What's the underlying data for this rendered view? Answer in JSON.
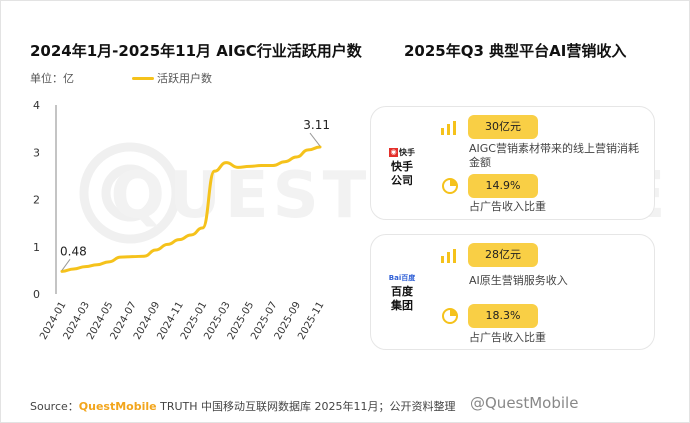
{
  "left_title": "2024年1月-2025年11月 AIGC行业活跃用户数",
  "right_title": "2025年Q3 典型平台AI营销收入",
  "unit_label": "单位：亿",
  "legend_label": "活跃用户数",
  "watermark": "QUESTMOBILE",
  "chart_data": {
    "type": "line",
    "title": "2024年1月-2025年11月 AIGC行业活跃用户数",
    "ylabel": "单位：亿",
    "ylim": [
      0,
      4
    ],
    "y_ticks": [
      "0",
      "1",
      "2",
      "3",
      "4"
    ],
    "grid": false,
    "legend_position": "top",
    "x": [
      "2024-01",
      "2024-02",
      "2024-03",
      "2024-04",
      "2024-05",
      "2024-06",
      "2024-07",
      "2024-08",
      "2024-09",
      "2024-10",
      "2024-11",
      "2024-12",
      "2025-01",
      "2025-02",
      "2025-03",
      "2025-04",
      "2025-05",
      "2025-06",
      "2025-07",
      "2025-08",
      "2025-09",
      "2025-10",
      "2025-11"
    ],
    "x_tick_labels": [
      "2024-01",
      "2024-03",
      "2024-05",
      "2024-07",
      "2024-09",
      "2024-11",
      "2025-01",
      "2025-03",
      "2025-05",
      "2025-07",
      "2025-09",
      "2025-11"
    ],
    "series": [
      {
        "name": "活跃用户数",
        "color": "#F5C21B",
        "values": [
          0.48,
          0.53,
          0.58,
          0.62,
          0.68,
          0.78,
          0.79,
          0.8,
          0.93,
          1.05,
          1.15,
          1.25,
          1.4,
          2.6,
          2.78,
          2.68,
          2.7,
          2.72,
          2.72,
          2.8,
          2.9,
          3.05,
          3.11
        ]
      }
    ],
    "annotations": [
      {
        "index": 0,
        "text": "0.48"
      },
      {
        "index": 22,
        "text": "3.11"
      }
    ]
  },
  "platforms": [
    {
      "name_line1": "快手",
      "name_line2": "公司",
      "logo_text": "快手",
      "amount": "30亿元",
      "amount_desc": "AIGC营销素材带来的线上营销消耗金额",
      "share": "14.9%",
      "share_desc": "占广告收入比重"
    },
    {
      "name_line1": "百度",
      "name_line2": "集团",
      "logo_text": "Bai百度",
      "amount": "28亿元",
      "amount_desc": "AI原生营销服务收入",
      "share": "18.3%",
      "share_desc": "占广告收入比重"
    }
  ],
  "source": {
    "prefix": "Source：",
    "brand": "QuestMobile",
    "rest": " TRUTH 中国移动互联网数据库 2025年11月；公开资料整理"
  },
  "footer_watermark": "@QuestMobile",
  "colors": {
    "accent": "#F5C21B",
    "pill": "#F9CF45",
    "brand": "#F2A51C"
  }
}
